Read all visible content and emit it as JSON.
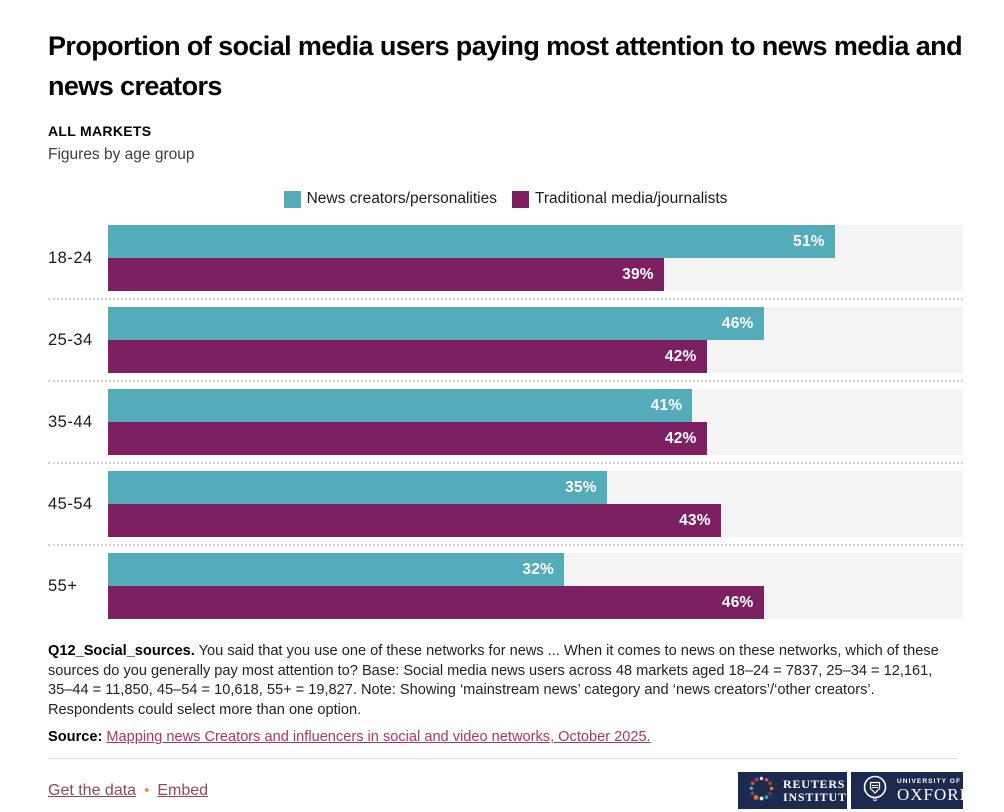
{
  "header": {
    "title": "Proportion of social media users paying most attention to news media and news creators",
    "kicker": "ALL MARKETS",
    "subtitle": "Figures by age group"
  },
  "chart_data": {
    "type": "bar",
    "orientation": "horizontal",
    "categories": [
      "18-24",
      "25-34",
      "35-44",
      "45-54",
      "55+"
    ],
    "series": [
      {
        "name": "News creators/personalities",
        "color": "#54abba",
        "values": [
          51,
          46,
          41,
          35,
          32
        ]
      },
      {
        "name": "Traditional media/journalists",
        "color": "#7c2062",
        "values": [
          39,
          42,
          42,
          43,
          46
        ]
      }
    ],
    "value_suffix": "%",
    "xlim": [
      0,
      60
    ],
    "grid": false,
    "legend_position": "top-center",
    "track_color": "#f4f4f4",
    "value_labels": "inside-end, white bold"
  },
  "footnote": {
    "lead": "Q12_Social_sources.",
    "text": " You said that you use one of these networks for news ... When it comes to news on these networks, which of these sources do you generally pay most attention to? Base: Social media news users across 48 markets aged 18–24 = 7837, 25–34 = 12,161, 35–44 = 11,850, 45–54 = 10,618, 55+ = 19,827. Note: Showing ‘mainstream news’ category and ‘news creators’/‘other creators’. Respondents could select more than one option."
  },
  "source": {
    "label": "Source:",
    "link_text": "Mapping news Creators and influencers in social and video networks, October 2025."
  },
  "footer": {
    "get_data_label": "Get the data",
    "bullet": "•",
    "embed_label": "Embed"
  },
  "logos": {
    "reuters": {
      "line1": "REUTERS",
      "line2": "INSTITUTE"
    },
    "oxford": {
      "line1": "UNIVERSITY OF",
      "line2": "OXFORD"
    }
  },
  "colors": {
    "teal": "#54abba",
    "purple": "#7c2062",
    "source_link": "#b23363",
    "footer_link": "#96465c",
    "bullet_orange": "#ec8c3f",
    "badge_navy": "#1b2a4e"
  }
}
